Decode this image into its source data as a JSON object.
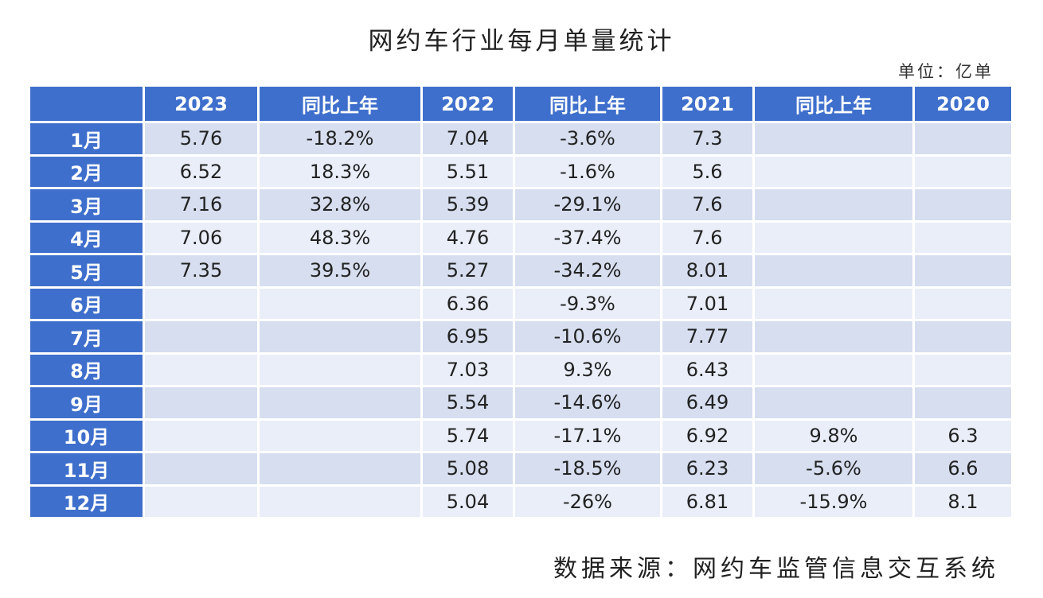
{
  "title": "网约车行业每月单量统计",
  "unit": "单位：亿单",
  "source": "数据来源：网约车监管信息交互系统",
  "table": {
    "headers": [
      "",
      "2023",
      "同比上年",
      "2022",
      "同比上年",
      "2021",
      "同比上年",
      "2020"
    ],
    "rows": [
      [
        "1月",
        "5.76",
        "-18.2%",
        "7.04",
        "-3.6%",
        "7.3",
        "",
        ""
      ],
      [
        "2月",
        "6.52",
        "18.3%",
        "5.51",
        "-1.6%",
        "5.6",
        "",
        ""
      ],
      [
        "3月",
        "7.16",
        "32.8%",
        "5.39",
        "-29.1%",
        "7.6",
        "",
        ""
      ],
      [
        "4月",
        "7.06",
        "48.3%",
        "4.76",
        "-37.4%",
        "7.6",
        "",
        ""
      ],
      [
        "5月",
        "7.35",
        "39.5%",
        "5.27",
        "-34.2%",
        "8.01",
        "",
        ""
      ],
      [
        "6月",
        "",
        "",
        "6.36",
        "-9.3%",
        "7.01",
        "",
        ""
      ],
      [
        "7月",
        "",
        "",
        "6.95",
        "-10.6%",
        "7.77",
        "",
        ""
      ],
      [
        "8月",
        "",
        "",
        "7.03",
        "9.3%",
        "6.43",
        "",
        ""
      ],
      [
        "9月",
        "",
        "",
        "5.54",
        "-14.6%",
        "6.49",
        "",
        ""
      ],
      [
        "10月",
        "",
        "",
        "5.74",
        "-17.1%",
        "6.92",
        "9.8%",
        "6.3"
      ],
      [
        "11月",
        "",
        "",
        "5.08",
        "-18.5%",
        "6.23",
        "-5.6%",
        "6.6"
      ],
      [
        "12月",
        "",
        "",
        "5.04",
        "-26%",
        "6.81",
        "-15.9%",
        "8.1"
      ]
    ]
  },
  "colors": {
    "header_bg": "#3f6fcc",
    "row_odd": "#d6deef",
    "row_even": "#e9eef8"
  }
}
